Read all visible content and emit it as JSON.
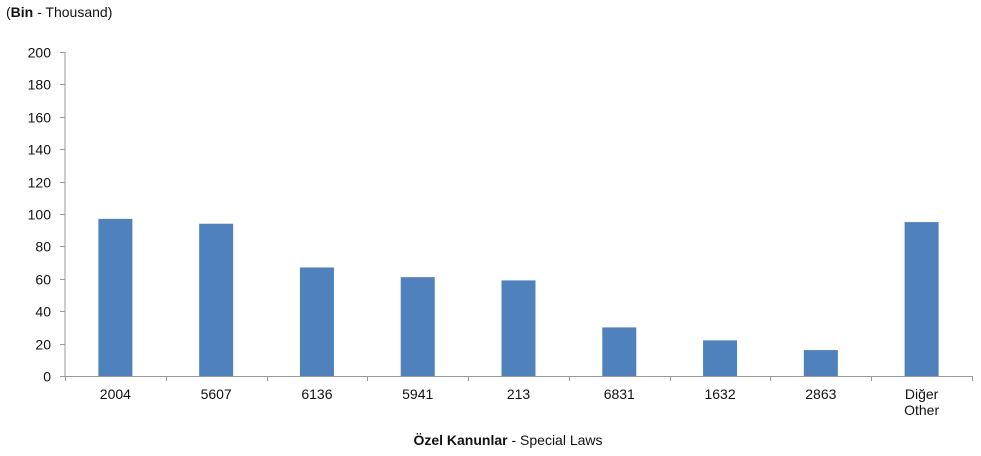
{
  "chart_data": {
    "type": "bar",
    "unit_label": {
      "bold": "Bin",
      "rest": " - Thousand"
    },
    "xlabel": {
      "bold": "Özel Kanunlar",
      "rest": " - Special Laws"
    },
    "ylim": [
      0,
      200
    ],
    "yticks": [
      0,
      20,
      40,
      60,
      80,
      100,
      120,
      140,
      160,
      180,
      200
    ],
    "categories": [
      [
        "2004"
      ],
      [
        "5607"
      ],
      [
        "6136"
      ],
      [
        "5941"
      ],
      [
        "213"
      ],
      [
        "6831"
      ],
      [
        "1632"
      ],
      [
        "2863"
      ],
      [
        "Diğer",
        "Other"
      ]
    ],
    "values": [
      97,
      94,
      67,
      61,
      59,
      30,
      22,
      16,
      95
    ],
    "bar_color": "#4f81bd",
    "axis_color": "#999999",
    "grid": false,
    "legend": "none"
  }
}
